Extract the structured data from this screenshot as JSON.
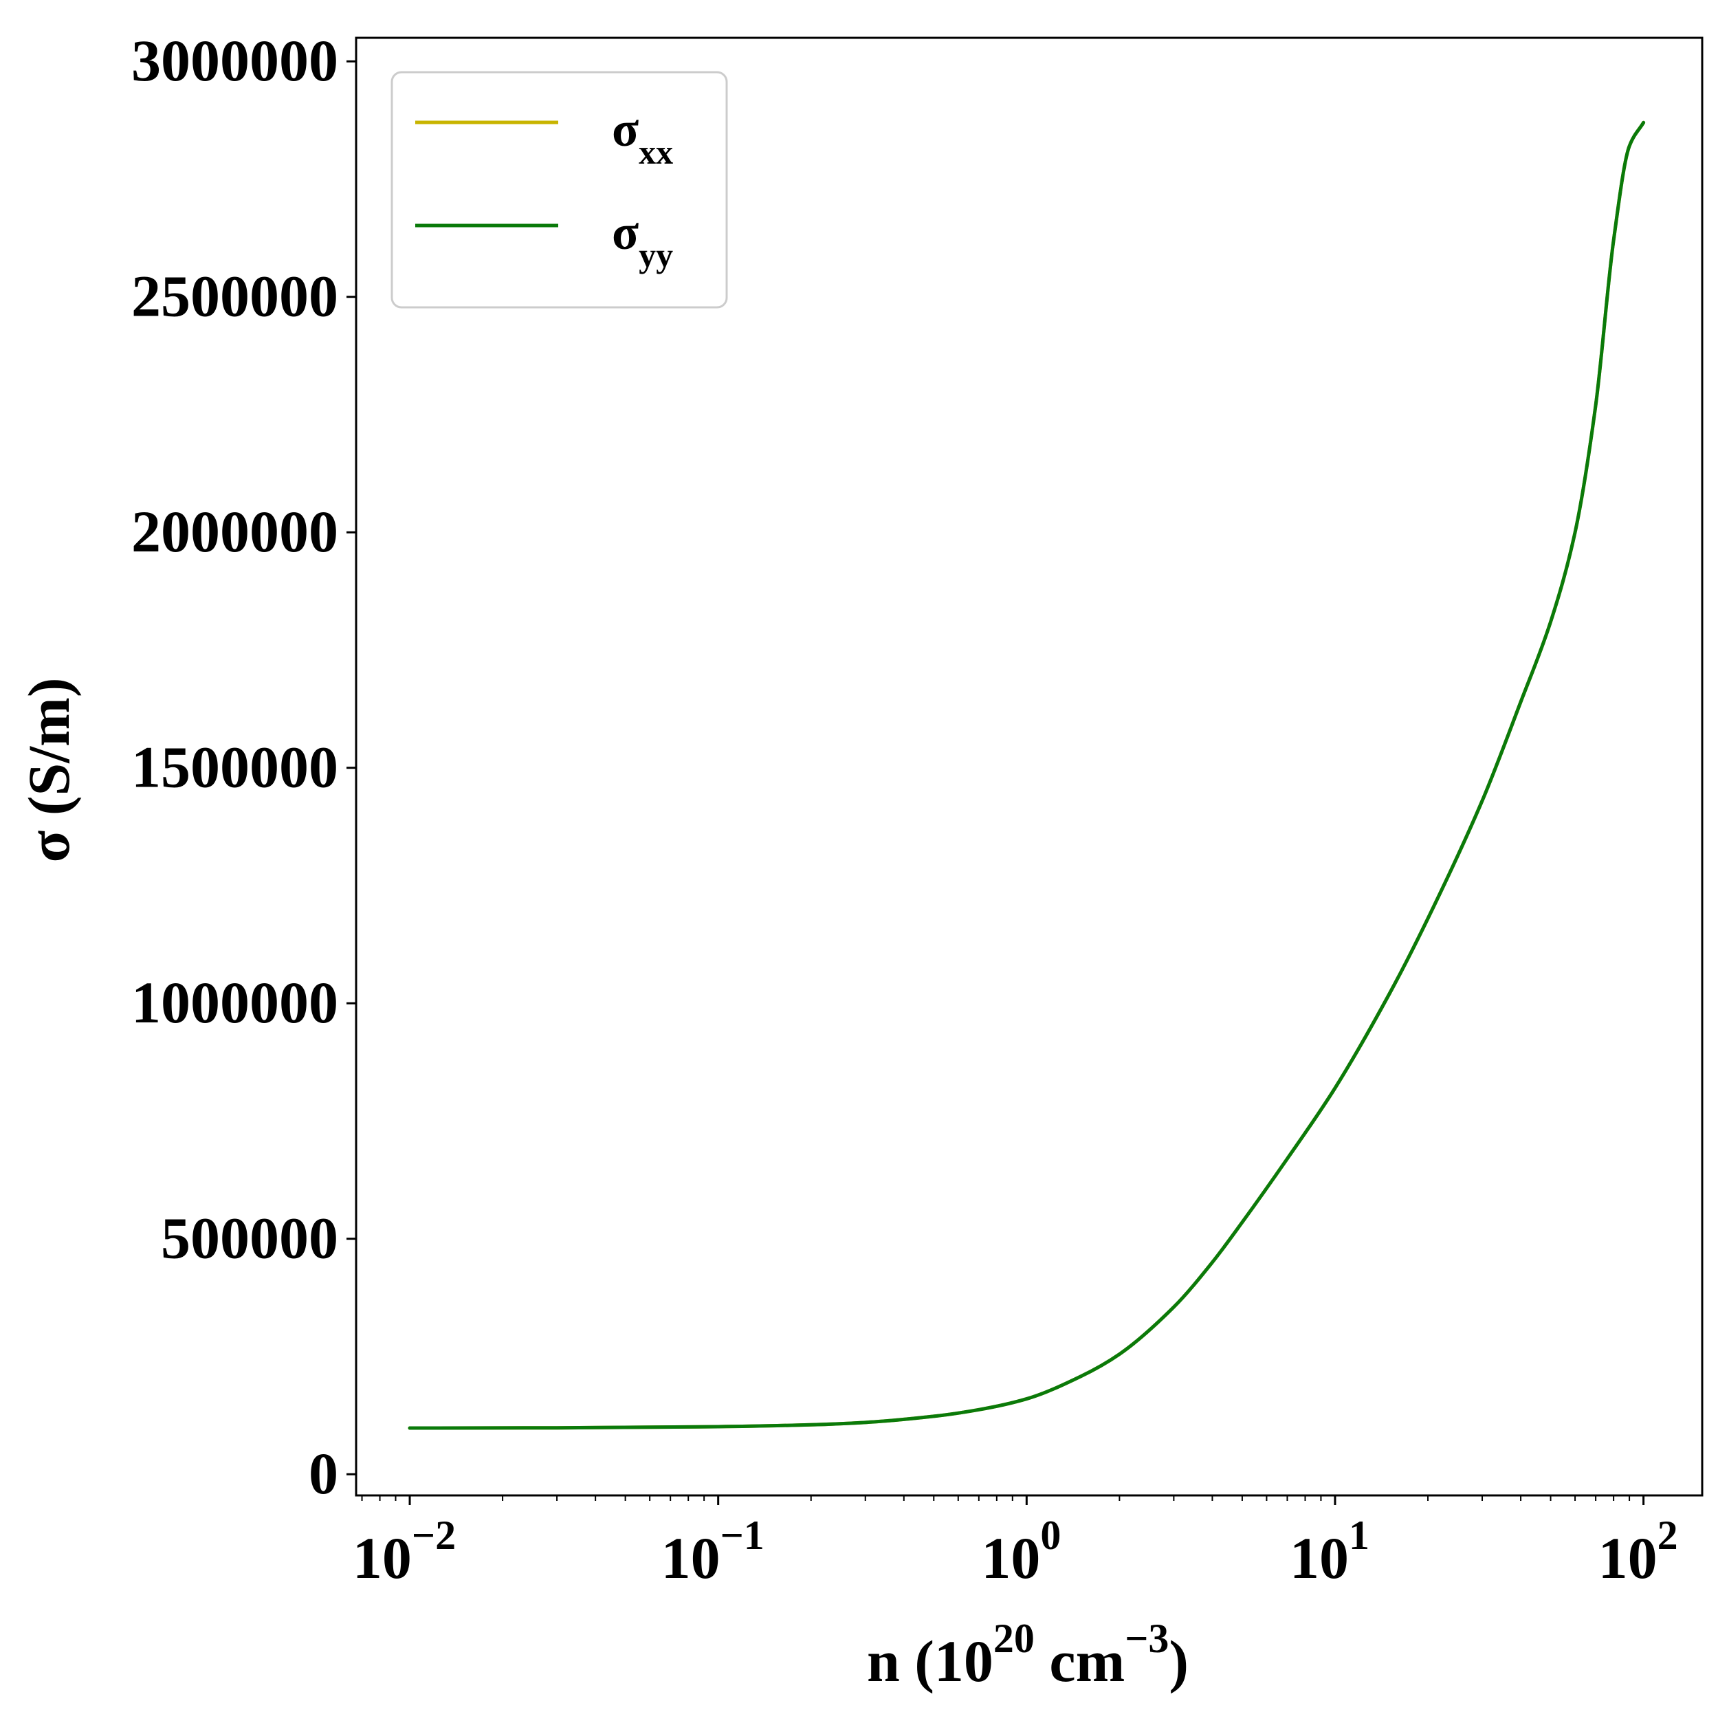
{
  "chart_data": {
    "type": "line",
    "title": "",
    "xlabel": {
      "base": "n (10",
      "exp1": "20",
      "mid": " cm",
      "exp2": "−3",
      "end": ")"
    },
    "ylabel": "σ (S/m)",
    "xscale": "log",
    "xlim": [
      0.0067,
      155
    ],
    "ylim": [
      -45000,
      3050000
    ],
    "grid": false,
    "legend_position": "top-left",
    "xticks": [
      {
        "value": 0.01,
        "base": "10",
        "exp": "−2"
      },
      {
        "value": 0.1,
        "base": "10",
        "exp": "−1"
      },
      {
        "value": 1,
        "base": "10",
        "exp": "0"
      },
      {
        "value": 10,
        "base": "10",
        "exp": "1"
      },
      {
        "value": 100,
        "base": "10",
        "exp": "2"
      }
    ],
    "yticks": [
      {
        "value": 0,
        "label": "0"
      },
      {
        "value": 500000,
        "label": "500000"
      },
      {
        "value": 1000000,
        "label": "1000000"
      },
      {
        "value": 1500000,
        "label": "1500000"
      },
      {
        "value": 2000000,
        "label": "2000000"
      },
      {
        "value": 2500000,
        "label": "2500000"
      },
      {
        "value": 3000000,
        "label": "3000000"
      }
    ],
    "series": [
      {
        "name": "σ",
        "subscript": "xx",
        "color": "#c8b400",
        "x": [
          0.01,
          0.03,
          0.1,
          0.2,
          0.3,
          0.5,
          0.7,
          1,
          1.5,
          2,
          3,
          4,
          5,
          7,
          10,
          15,
          20,
          30,
          40,
          50,
          60,
          70,
          80,
          90,
          100
        ],
        "y": [
          98000,
          98500,
          101000,
          105000,
          110000,
          123000,
          137000,
          160000,
          208000,
          255000,
          355000,
          450000,
          535000,
          670000,
          820000,
          1020000,
          1180000,
          1430000,
          1640000,
          1810000,
          2000000,
          2270000,
          2620000,
          2820000,
          2870000
        ]
      },
      {
        "name": "σ",
        "subscript": "yy",
        "color": "#0a7a0a",
        "x": [
          0.01,
          0.03,
          0.1,
          0.2,
          0.3,
          0.5,
          0.7,
          1,
          1.5,
          2,
          3,
          4,
          5,
          7,
          10,
          15,
          20,
          30,
          40,
          50,
          60,
          70,
          80,
          90,
          100
        ],
        "y": [
          98000,
          98500,
          101000,
          105000,
          110000,
          123000,
          137000,
          160000,
          208000,
          255000,
          355000,
          450000,
          535000,
          670000,
          820000,
          1020000,
          1180000,
          1430000,
          1640000,
          1810000,
          2000000,
          2270000,
          2620000,
          2820000,
          2870000
        ]
      }
    ]
  }
}
